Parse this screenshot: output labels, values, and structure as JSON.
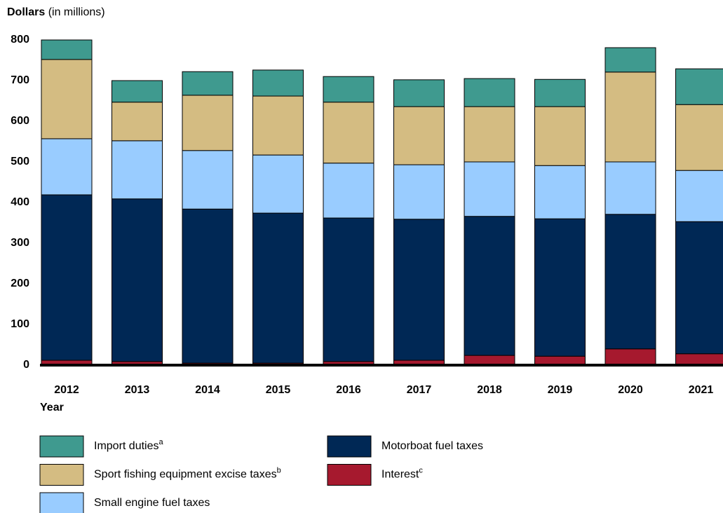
{
  "chart_data": {
    "type": "stacked_bar",
    "y_label": "Dollars",
    "y_label_note": "(in millions)",
    "x_label": "Year",
    "categories": [
      "2012",
      "2013",
      "2014",
      "2015",
      "2016",
      "2017",
      "2018",
      "2019",
      "2020",
      "2021"
    ],
    "series": [
      {
        "name": "Import duties",
        "note": "a",
        "color": "#3f9a8f",
        "values": [
          48,
          53,
          58,
          64,
          63,
          66,
          69,
          67,
          60,
          88
        ]
      },
      {
        "name": "Sport fishing equipment excise taxes",
        "note": "b",
        "color": "#d4bc82",
        "values": [
          195,
          95,
          136,
          145,
          150,
          143,
          136,
          145,
          221,
          162
        ]
      },
      {
        "name": "Small engine fuel taxes",
        "color": "#99ccff",
        "values": [
          138,
          143,
          144,
          143,
          135,
          134,
          134,
          131,
          129,
          126
        ]
      },
      {
        "name": "Motorboat fuel taxes",
        "color": "#002855",
        "values": [
          407,
          400,
          379,
          369,
          353,
          347,
          342,
          338,
          331,
          325
        ]
      },
      {
        "name": "Interest",
        "note": "c",
        "color": "#a6192e",
        "values": [
          12,
          9,
          5,
          5,
          9,
          12,
          24,
          22,
          40,
          28
        ]
      }
    ],
    "ylim": [
      0,
      800
    ],
    "yticks": [
      0,
      100,
      200,
      300,
      400,
      500,
      600,
      700,
      800
    ],
    "grid": false
  }
}
